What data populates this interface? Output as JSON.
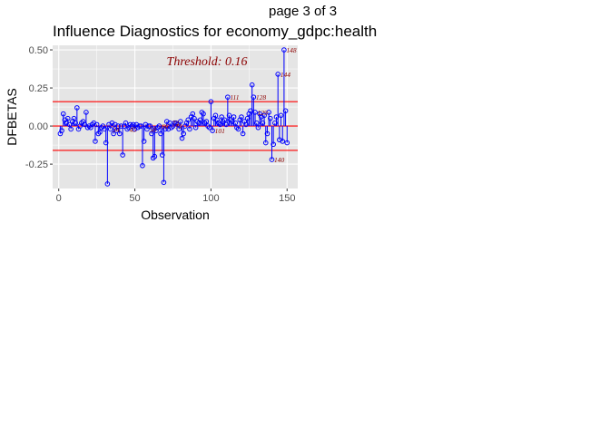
{
  "page_heading": "page 3 of 3",
  "chart_data": {
    "type": "scatter",
    "title": "Influence Diagnostics for economy_gdpc:health",
    "xlabel": "Observation",
    "ylabel": "DFBETAS",
    "xlim": [
      -4,
      157
    ],
    "ylim": [
      -0.41,
      0.53
    ],
    "x_ticks": [
      0,
      50,
      100,
      150
    ],
    "y_ticks": [
      -0.25,
      0.0,
      0.25,
      0.5
    ],
    "x_tick_labels": [
      "0",
      "50",
      "100",
      "150"
    ],
    "y_tick_labels": [
      "-0.25",
      "0.00",
      "0.25",
      "0.50"
    ],
    "grid": true,
    "threshold": 0.16,
    "threshold_label": "Threshold: 0.16",
    "colors": {
      "points": "#0000ff",
      "threshold": "#ff0000",
      "labels": "#8b0000",
      "panel": "#e5e5e5",
      "grid": "#ffffff"
    },
    "y_values": [
      -0.05,
      -0.03,
      0.08,
      0.04,
      0.02,
      0.05,
      0.01,
      -0.02,
      0.03,
      0.05,
      0.02,
      0.12,
      -0.02,
      0.0,
      0.02,
      0.03,
      0.01,
      0.09,
      -0.01,
      0.0,
      -0.01,
      0.01,
      0.02,
      -0.1,
      0.01,
      -0.05,
      -0.04,
      -0.01,
      0.0,
      -0.02,
      -0.11,
      -0.38,
      0.01,
      -0.02,
      0.02,
      -0.05,
      0.01,
      -0.03,
      0.0,
      -0.05,
      0.0,
      -0.19,
      0.0,
      0.02,
      -0.02,
      -0.01,
      0.01,
      0.0,
      0.01,
      -0.02,
      0.01,
      -0.01,
      0.0,
      0.0,
      -0.26,
      -0.1,
      0.01,
      -0.02,
      0.0,
      0.0,
      -0.05,
      -0.21,
      -0.2,
      -0.03,
      -0.01,
      0.0,
      -0.05,
      -0.19,
      -0.37,
      -0.02,
      0.03,
      -0.02,
      0.02,
      -0.01,
      0.0,
      0.02,
      0.02,
      0.01,
      -0.02,
      0.03,
      -0.08,
      -0.05,
      0.0,
      0.02,
      0.04,
      -0.02,
      0.06,
      0.08,
      0.05,
      -0.01,
      0.03,
      0.02,
      0.04,
      0.09,
      0.08,
      0.02,
      0.03,
      0.0,
      -0.01,
      0.16,
      -0.03,
      0.05,
      0.07,
      0.04,
      0.02,
      0.01,
      0.06,
      0.03,
      0.04,
      0.01,
      0.19,
      0.07,
      0.04,
      0.03,
      0.06,
      0.02,
      -0.01,
      -0.02,
      0.04,
      0.06,
      -0.05,
      0.03,
      0.01,
      0.05,
      0.08,
      0.1,
      0.27,
      0.19,
      0.09,
      0.02,
      -0.01,
      0.08,
      0.06,
      0.02,
      0.07,
      -0.11,
      -0.05,
      0.09,
      0.05,
      -0.22,
      -0.12,
      0.02,
      0.06,
      0.34,
      -0.09,
      0.07,
      -0.1,
      0.5,
      0.1,
      -0.11
    ],
    "labeled_points": [
      {
        "x": 34,
        "label": "34"
      },
      {
        "x": 45,
        "label": "45"
      },
      {
        "x": 58,
        "label": "58"
      },
      {
        "x": 66,
        "label": "66"
      },
      {
        "x": 73,
        "label": "73"
      },
      {
        "x": 75,
        "label": "75"
      },
      {
        "x": 101,
        "label": "101"
      },
      {
        "x": 111,
        "label": "111"
      },
      {
        "x": 128,
        "label": "128"
      },
      {
        "x": 129,
        "label": "129"
      },
      {
        "x": 140,
        "label": "140"
      },
      {
        "x": 144,
        "label": "144"
      },
      {
        "x": 148,
        "label": "148"
      }
    ]
  }
}
